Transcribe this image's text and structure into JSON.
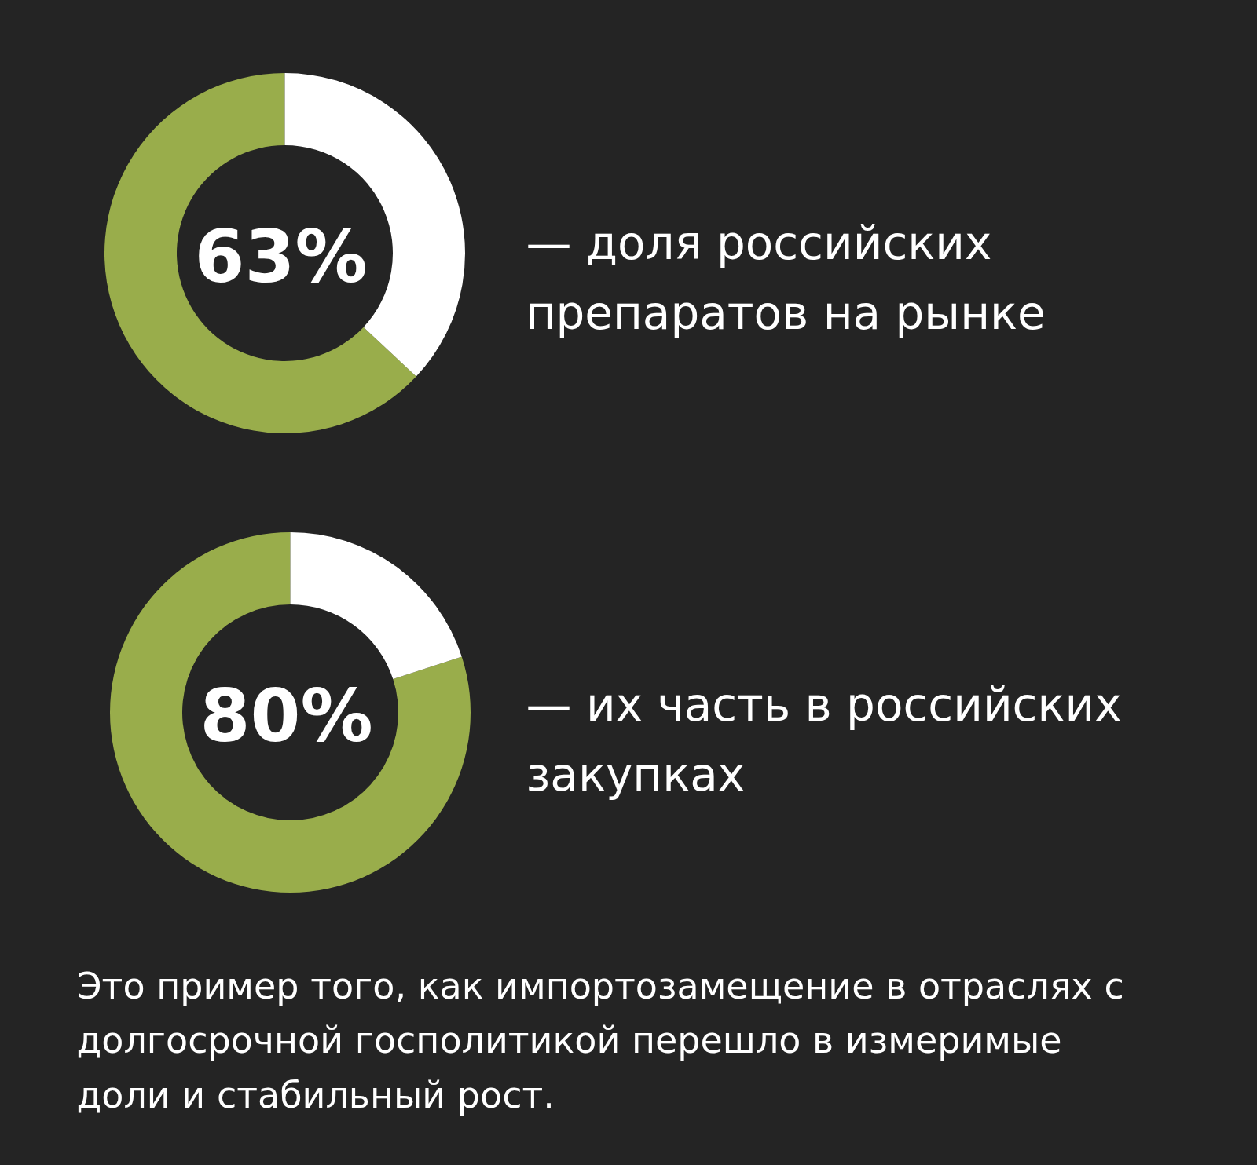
{
  "chart_data": [
    {
      "type": "donut",
      "categories": [
        null,
        null
      ],
      "values": [
        63,
        37
      ],
      "colors": [
        "#99ad4b",
        "#ffffff"
      ],
      "value_labels": [
        "63%",
        null
      ],
      "annotations": [
        "— доля российских\nпрепаратов на рынке"
      ]
    },
    {
      "type": "donut",
      "categories": [
        null,
        null
      ],
      "values": [
        80,
        20
      ],
      "colors": [
        "#99ad4b",
        "#ffffff"
      ],
      "value_labels": [
        "80%",
        null
      ],
      "annotations": [
        "— их часть в российских\nзакупках",
        "Это пример того, как импортозамещение в отраслях с\nдолгосрочной госполитикой перешло в измеримые\nдоли и стабильный рост."
      ]
    }
  ]
}
